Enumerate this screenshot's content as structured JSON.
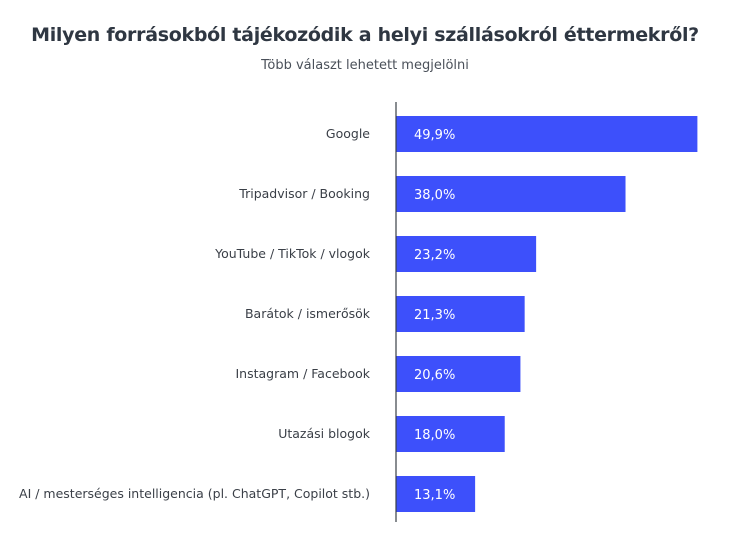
{
  "chart_data": {
    "type": "bar",
    "orientation": "horizontal",
    "title": "Milyen forrásokból tájékozódik a helyi szállásokról éttermekről?",
    "subtitle": "Több választ lehetett megjelölni",
    "categories": [
      "Google",
      "Tripadvisor / Booking",
      "YouTube / TikTok / vlogok",
      "Barátok / ismerősök",
      "Instagram / Facebook",
      "Utazási blogok",
      "AI / mesterséges intelligencia (pl. ChatGPT, Copilot stb.)"
    ],
    "values": [
      49.9,
      38.0,
      23.2,
      21.3,
      20.6,
      18.0,
      13.1
    ],
    "labels": [
      "49,9%",
      "38,0%",
      "23,2%",
      "21,3%",
      "20,6%",
      "18,0%",
      "13,1%"
    ],
    "xlim": [
      0,
      50
    ],
    "grid": false,
    "bar_color": "#3d50fb"
  }
}
